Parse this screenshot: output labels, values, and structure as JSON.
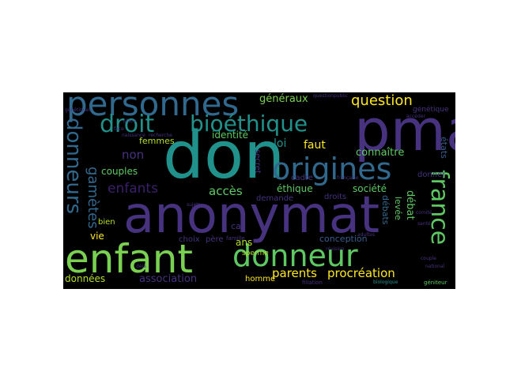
{
  "palette": {
    "purple": "#46327e",
    "darkpurple": "#3b1f6b",
    "teal": "#31688e",
    "cyan": "#21918c",
    "blue": "#365c8d",
    "green": "#5ec962",
    "lightgreen": "#7ad151",
    "yellow": "#fde725",
    "lime": "#b5de2b"
  },
  "words": [
    {
      "text": "anonymat",
      "color": "purple"
    },
    {
      "text": "don",
      "color": "cyan"
    },
    {
      "text": "pma",
      "color": "purple"
    },
    {
      "text": "enfant",
      "color": "lightgreen"
    },
    {
      "text": "personnes",
      "color": "teal"
    },
    {
      "text": "donneur",
      "color": "green"
    },
    {
      "text": "origines",
      "color": "teal"
    },
    {
      "text": "droit",
      "color": "cyan"
    },
    {
      "text": "bioéthique",
      "color": "cyan"
    },
    {
      "text": "donneurs",
      "color": "teal"
    },
    {
      "text": "france",
      "color": "green"
    },
    {
      "text": "question",
      "color": "yellow"
    },
    {
      "text": "enfants",
      "color": "darkpurple"
    },
    {
      "text": "parents",
      "color": "yellow"
    },
    {
      "text": "procréation",
      "color": "yellow"
    },
    {
      "text": "gamètes",
      "color": "teal"
    },
    {
      "text": "accès",
      "color": "green"
    },
    {
      "text": "généraux",
      "color": "lightgreen"
    },
    {
      "text": "faut",
      "color": "yellow"
    },
    {
      "text": "loi",
      "color": "cyan"
    },
    {
      "text": "non",
      "color": "purple"
    },
    {
      "text": "femmes",
      "color": "lime"
    },
    {
      "text": "identité",
      "color": "green"
    },
    {
      "text": "connaître",
      "color": "green"
    },
    {
      "text": "couples",
      "color": "green"
    },
    {
      "text": "éthique",
      "color": "green"
    },
    {
      "text": "société",
      "color": "green"
    },
    {
      "text": "débat",
      "color": "green"
    },
    {
      "text": "états",
      "color": "blue"
    },
    {
      "text": "données",
      "color": "lime"
    },
    {
      "text": "association",
      "color": "purple"
    },
    {
      "text": "conception",
      "color": "blue"
    },
    {
      "text": "vie",
      "color": "yellow"
    },
    {
      "text": "bien",
      "color": "lime"
    },
    {
      "text": "ans",
      "color": "lime"
    },
    {
      "text": "cas",
      "color": "purple"
    },
    {
      "text": "choix",
      "color": "purple"
    },
    {
      "text": "père",
      "color": "purple"
    },
    {
      "text": "homme",
      "color": "yellow"
    },
    {
      "text": "secret",
      "color": "purple"
    },
    {
      "text": "demande",
      "color": "purple"
    },
    {
      "text": "débats",
      "color": "teal"
    },
    {
      "text": "levée",
      "color": "green"
    },
    {
      "text": "donner",
      "color": "purple"
    },
    {
      "text": "droits",
      "color": "purple"
    },
    {
      "text": "cadre",
      "color": "purple"
    },
    {
      "text": "sperme",
      "color": "lime"
    },
    {
      "text": "génétique",
      "color": "purple"
    },
    {
      "text": "famille",
      "color": "purple"
    },
    {
      "text": "biologique",
      "color": "cyan"
    },
    {
      "text": "filiation",
      "color": "purple"
    },
    {
      "text": "sujets",
      "color": "purple"
    },
    {
      "text": "naissance",
      "color": "purple"
    },
    {
      "text": "recherche",
      "color": "purple"
    },
    {
      "text": "face",
      "color": "purple"
    },
    {
      "text": "public",
      "color": "purple"
    },
    {
      "text": "couple",
      "color": "purple"
    },
    {
      "text": "comité",
      "color": "purple"
    },
    {
      "text": "national",
      "color": "purple"
    },
    {
      "text": "géniteur",
      "color": "green"
    },
    {
      "text": "adultes",
      "color": "purple"
    },
    {
      "text": "révision",
      "color": "purple"
    },
    {
      "text": "accéder",
      "color": "purple"
    },
    {
      "text": "génétiques",
      "color": "purple"
    },
    {
      "text": "place",
      "color": "purple"
    },
    {
      "text": "française",
      "color": "purple"
    },
    {
      "text": "question",
      "color": "purple"
    },
    {
      "text": "santé",
      "color": "purple"
    },
    {
      "text": "déjà",
      "color": "purple"
    }
  ]
}
